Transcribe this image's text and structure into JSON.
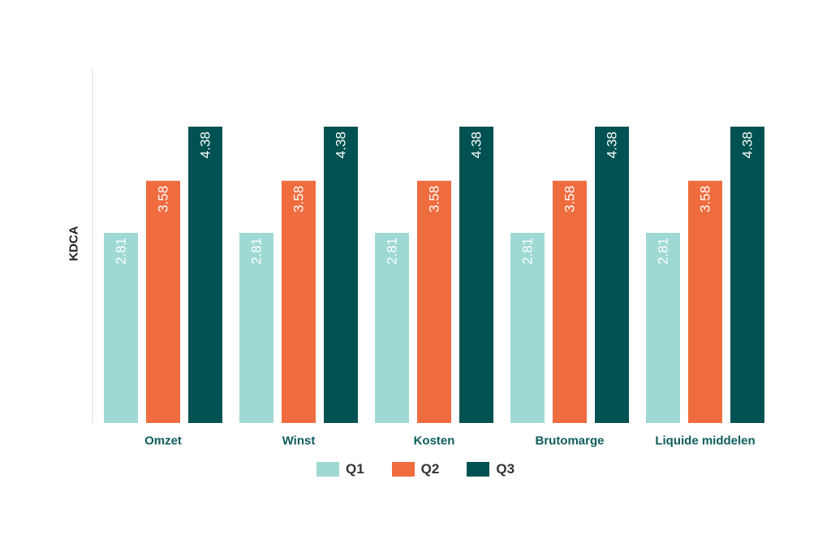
{
  "chart_data": {
    "type": "bar",
    "categories": [
      "Omzet",
      "Winst",
      "Kosten",
      "Brutomarge",
      "Liquide middelen"
    ],
    "series": [
      {
        "name": "Q1",
        "color": "#9fd9d3",
        "values": [
          2.81,
          2.81,
          2.81,
          2.81,
          2.81
        ]
      },
      {
        "name": "Q2",
        "color": "#ef6c3f",
        "values": [
          3.58,
          3.58,
          3.58,
          3.58,
          3.58
        ]
      },
      {
        "name": "Q3",
        "color": "#005252",
        "values": [
          4.38,
          4.38,
          4.38,
          4.38,
          4.38
        ]
      }
    ],
    "title": "",
    "xlabel": "",
    "ylabel": "KDCA",
    "ylim": [
      0,
      4.38
    ],
    "grid": false,
    "legend_position": "bottom",
    "category_label_color": "#0d5c5c",
    "data_label_color": "#ffffff"
  }
}
